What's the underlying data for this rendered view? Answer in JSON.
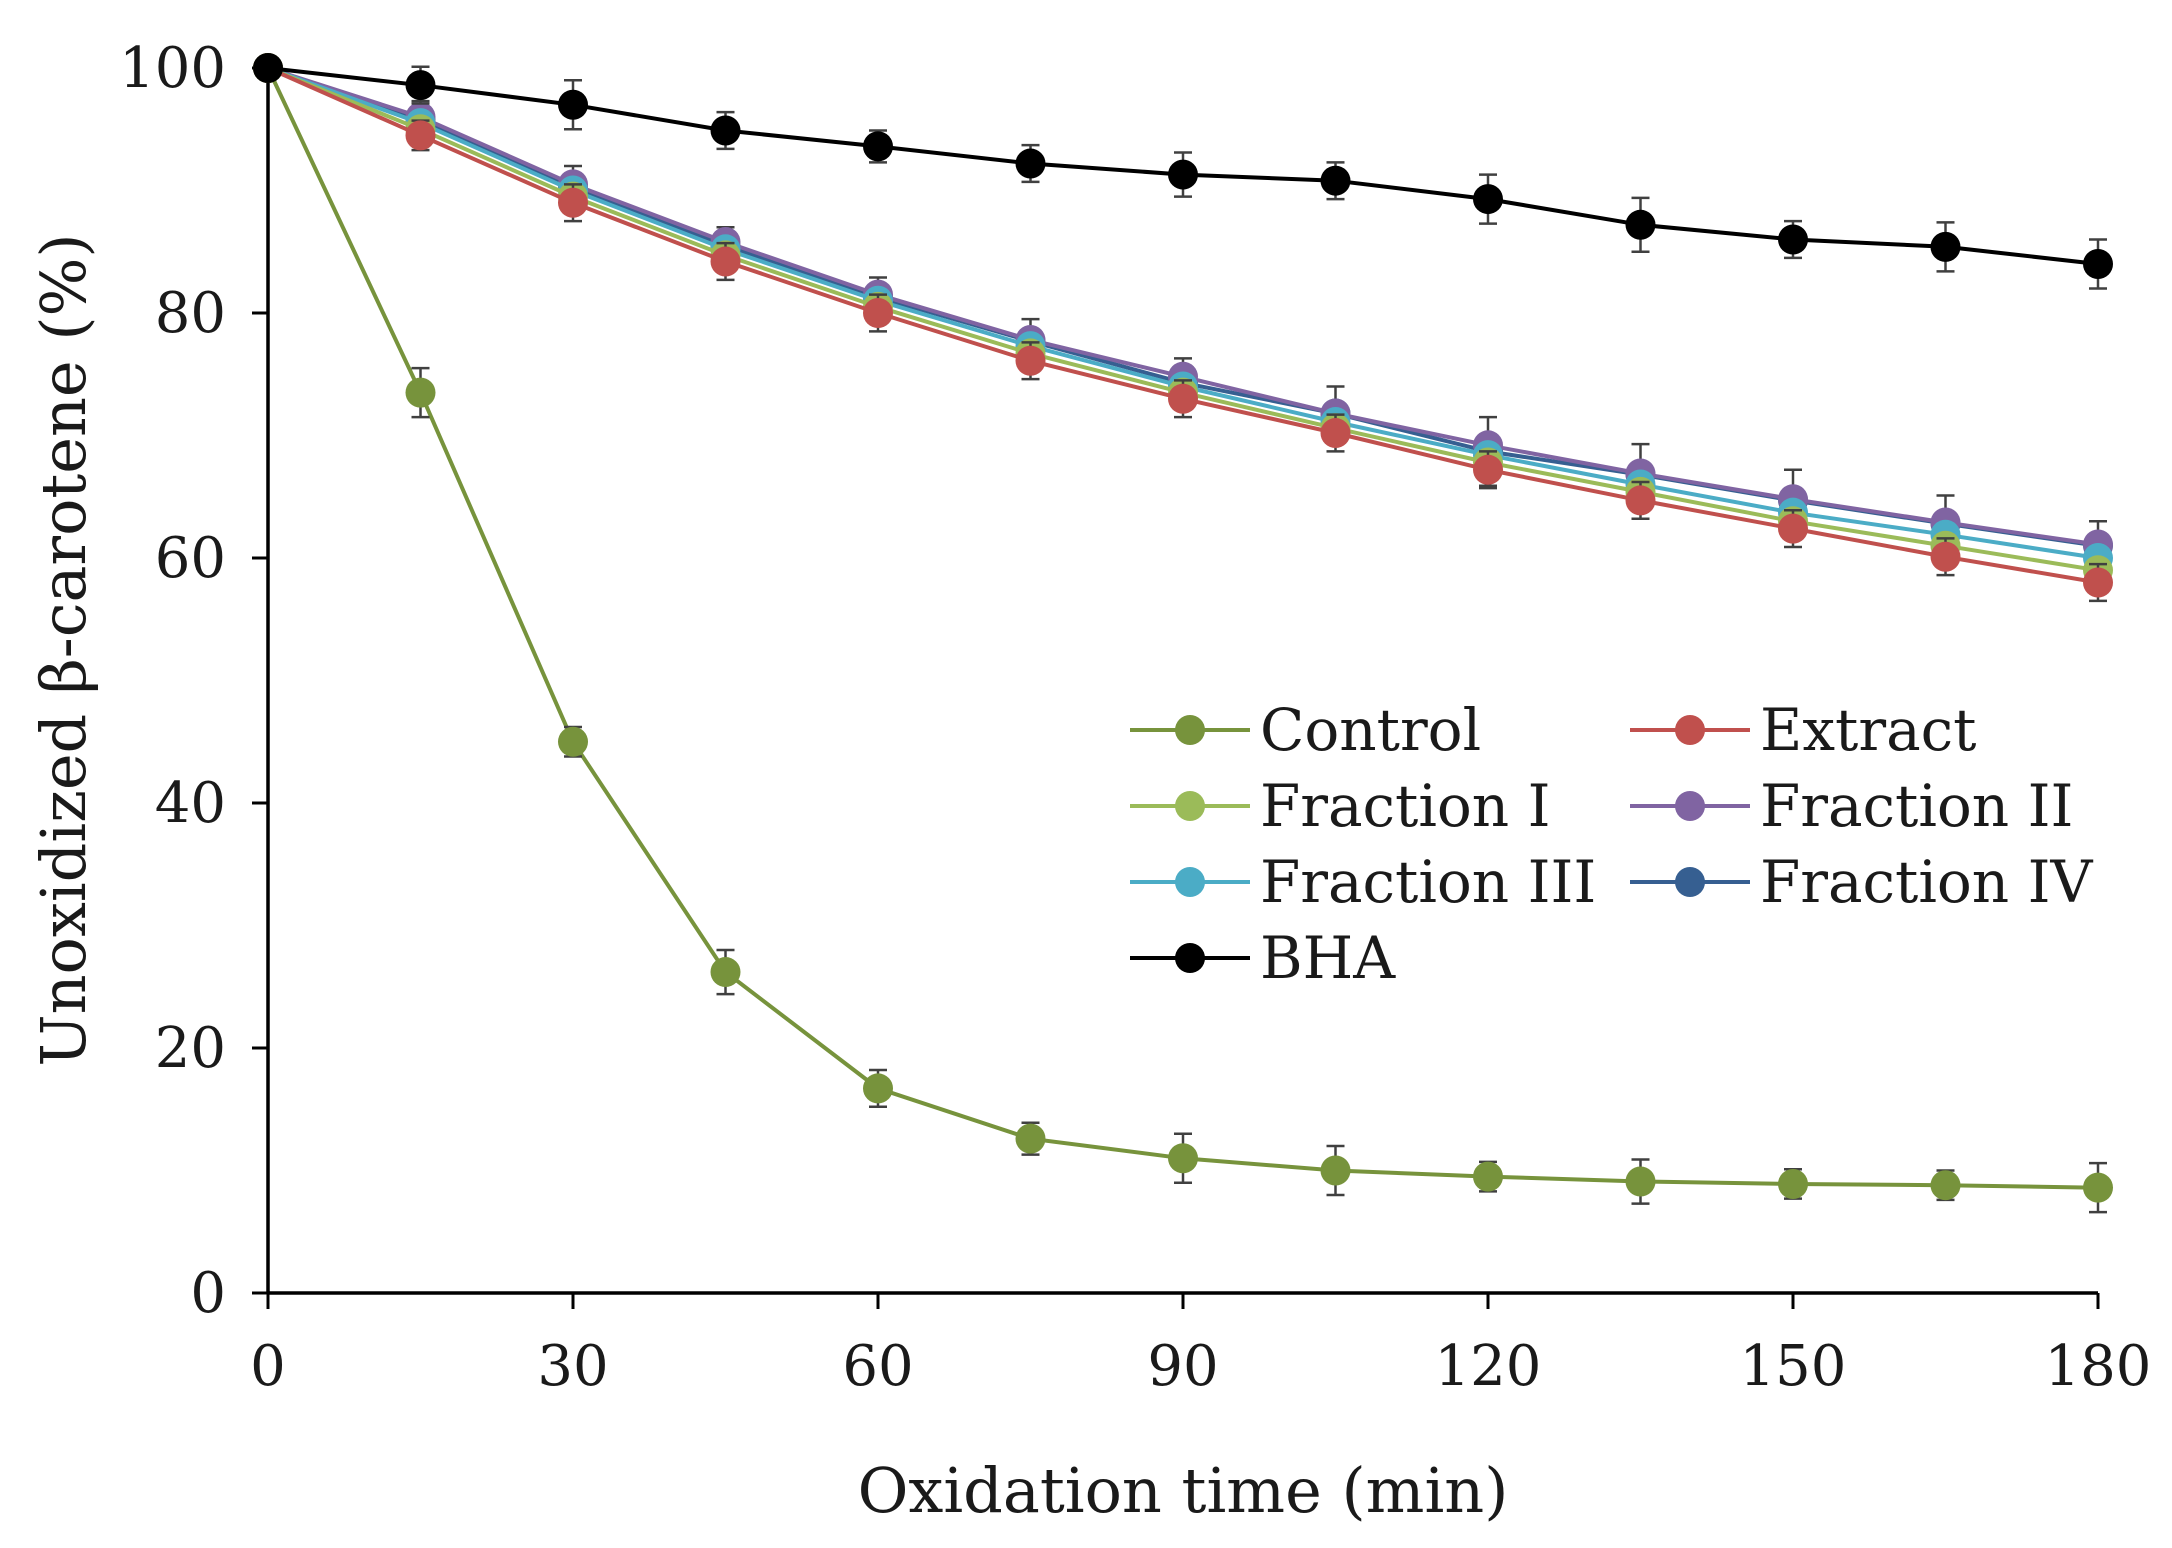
{
  "chart_data": {
    "type": "line",
    "title": "",
    "xlabel": "Oxidation time (min)",
    "ylabel": "Unoxidized β-carotene (%)",
    "xlim": [
      0,
      180
    ],
    "ylim": [
      0,
      100
    ],
    "xticks": [
      "0",
      "30",
      "60",
      "90",
      "120",
      "150",
      "180"
    ],
    "yticks": [
      "0",
      "20",
      "40",
      "60",
      "80",
      "100"
    ],
    "grid": false,
    "legend_position": "center-right",
    "x": [
      0,
      15,
      30,
      45,
      60,
      75,
      90,
      105,
      120,
      135,
      150,
      165,
      180
    ],
    "series": [
      {
        "name": "Control",
        "color": "#77933c",
        "values": [
          100,
          73.5,
          45,
          26.2,
          16.7,
          12.6,
          11,
          10,
          9.5,
          9.1,
          8.9,
          8.8,
          8.6
        ],
        "errors": [
          0.3,
          2.0,
          1.2,
          1.8,
          1.5,
          1.3,
          2.0,
          2.0,
          1.2,
          1.8,
          1.2,
          1.2,
          2.0
        ]
      },
      {
        "name": "Extract",
        "color": "#c0504d",
        "values": [
          100,
          94.5,
          89,
          84.2,
          80,
          76.1,
          73,
          70.2,
          67.2,
          64.7,
          62.4,
          60.1,
          58
        ],
        "errors": [
          0.2,
          1.2,
          1.5,
          1.5,
          1.5,
          1.5,
          1.5,
          1.5,
          1.5,
          1.5,
          1.5,
          1.5,
          1.5
        ]
      },
      {
        "name": "Fraction I",
        "color": "#9bbb59",
        "values": [
          100,
          95,
          89.5,
          84.7,
          80.5,
          76.7,
          73.5,
          70.6,
          67.8,
          65.4,
          63,
          61,
          59
        ]
      },
      {
        "name": "Fraction II",
        "color": "#8064a2",
        "values": [
          100,
          96,
          90.5,
          85.8,
          81.5,
          77.8,
          74.8,
          71.8,
          69.2,
          66.9,
          64.8,
          62.9,
          61.1
        ]
      },
      {
        "name": "Fraction III",
        "color": "#4bacc6",
        "values": [
          100,
          95.5,
          90,
          85.2,
          81,
          77.3,
          74,
          71.1,
          68.4,
          66,
          63.7,
          61.9,
          60
        ]
      },
      {
        "name": "Fraction IV",
        "color": "#365f91",
        "values": [
          100,
          95.8,
          90.2,
          85.5,
          81.3,
          77.7,
          74.3,
          71.8,
          68.7,
          66.8,
          64.7,
          62.8,
          61
        ],
        "errors": [
          0.2,
          1.5,
          1.8,
          1.5,
          1.6,
          1.8,
          2.0,
          2.2,
          2.8,
          2.5,
          2.5,
          2.3,
          2.0
        ]
      },
      {
        "name": "BHA",
        "color": "#000000",
        "values": [
          100,
          98.6,
          97,
          94.9,
          93.6,
          92.2,
          91.3,
          90.8,
          89.3,
          87.2,
          86,
          85.4,
          84
        ],
        "errors": [
          0.3,
          1.5,
          2.0,
          1.5,
          1.3,
          1.5,
          1.8,
          1.5,
          2.0,
          2.2,
          1.5,
          2.0,
          2.0
        ]
      }
    ]
  }
}
